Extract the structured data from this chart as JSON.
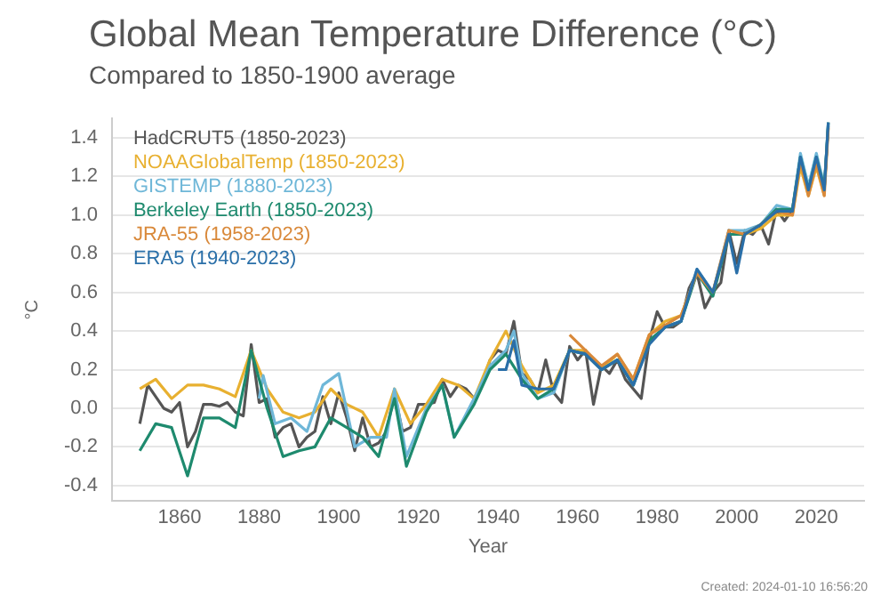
{
  "chart_data": {
    "type": "line",
    "title": "Global Mean Temperature Difference (°C)",
    "subtitle": "Compared to 1850-1900 average",
    "xlabel": "Year",
    "ylabel": "°C",
    "annotations": [
      "Created: 2024-01-10 16:56:20"
    ],
    "xlim": [
      1843,
      2032
    ],
    "xticks": [
      1860,
      1880,
      1900,
      1920,
      1940,
      1960,
      1980,
      2000,
      2020
    ],
    "ylim": [
      -0.48,
      1.5
    ],
    "yticks": [
      -0.4,
      -0.2,
      {
        "value": 0,
        "label": "0.0"
      },
      0.2,
      0.4,
      0.6,
      0.8,
      {
        "value": 1,
        "label": "1.0"
      },
      1.2,
      1.4
    ],
    "grid": "y",
    "legend": "top left",
    "marker": "none",
    "line_style": "solid",
    "series": [
      {
        "name": "HadCRUT5 (1850-2023)",
        "color": "#555555",
        "x": [
          1850,
          1852,
          1854,
          1856,
          1858,
          1860,
          1862,
          1864,
          1866,
          1868,
          1870,
          1872,
          1874,
          1876,
          1878,
          1880,
          1882,
          1884,
          1886,
          1888,
          1890,
          1892,
          1894,
          1896,
          1898,
          1900,
          1902,
          1904,
          1906,
          1908,
          1910,
          1912,
          1914,
          1916,
          1918,
          1920,
          1922,
          1924,
          1926,
          1928,
          1930,
          1932,
          1934,
          1936,
          1938,
          1940,
          1942,
          1944,
          1946,
          1948,
          1950,
          1952,
          1954,
          1956,
          1958,
          1960,
          1962,
          1964,
          1966,
          1968,
          1970,
          1972,
          1974,
          1976,
          1978,
          1980,
          1982,
          1984,
          1986,
          1988,
          1990,
          1992,
          1994,
          1996,
          1998,
          2000,
          2002,
          2004,
          2006,
          2008,
          2010,
          2012,
          2014,
          2016,
          2018,
          2020,
          2022,
          2023
        ],
        "values": [
          -0.08,
          0.12,
          0.06,
          0.0,
          -0.02,
          0.03,
          -0.2,
          -0.12,
          0.02,
          0.02,
          0.01,
          0.03,
          -0.02,
          -0.04,
          0.33,
          0.03,
          0.05,
          -0.15,
          -0.1,
          -0.08,
          -0.2,
          -0.15,
          -0.12,
          0.06,
          -0.08,
          0.08,
          -0.05,
          -0.22,
          -0.05,
          -0.2,
          -0.18,
          -0.12,
          0.08,
          -0.12,
          -0.1,
          0.02,
          0.02,
          0.03,
          0.15,
          0.06,
          0.12,
          0.1,
          0.05,
          0.12,
          0.25,
          0.3,
          0.28,
          0.45,
          0.18,
          0.15,
          0.08,
          0.25,
          0.08,
          0.03,
          0.32,
          0.25,
          0.3,
          0.02,
          0.22,
          0.18,
          0.25,
          0.15,
          0.1,
          0.05,
          0.35,
          0.5,
          0.42,
          0.42,
          0.45,
          0.62,
          0.7,
          0.52,
          0.6,
          0.65,
          0.92,
          0.75,
          0.92,
          0.9,
          0.95,
          0.85,
          1.03,
          0.97,
          1.03,
          1.3,
          1.13,
          1.29,
          1.14,
          1.46
        ]
      },
      {
        "name": "NOAAGlobalTemp (1850-2023)",
        "color": "#e8b030",
        "x": [
          1850,
          1854,
          1858,
          1862,
          1866,
          1870,
          1874,
          1878,
          1882,
          1886,
          1890,
          1894,
          1898,
          1902,
          1906,
          1910,
          1914,
          1918,
          1922,
          1926,
          1930,
          1934,
          1938,
          1942,
          1946,
          1950,
          1954,
          1958,
          1962,
          1966,
          1970,
          1974,
          1978,
          1982,
          1986,
          1990,
          1994,
          1998,
          2002,
          2006,
          2010,
          2014,
          2016,
          2018,
          2020,
          2022
        ],
        "values": [
          0.1,
          0.15,
          0.05,
          0.12,
          0.12,
          0.1,
          0.06,
          0.3,
          0.1,
          -0.02,
          -0.05,
          -0.02,
          0.1,
          0.02,
          -0.02,
          -0.15,
          0.1,
          -0.08,
          0.02,
          0.15,
          0.12,
          0.05,
          0.25,
          0.4,
          0.22,
          0.08,
          0.12,
          0.3,
          0.3,
          0.2,
          0.28,
          0.15,
          0.38,
          0.45,
          0.48,
          0.7,
          0.6,
          0.9,
          0.9,
          0.93,
          1.0,
          1.0,
          1.25,
          1.1,
          1.25,
          1.1
        ]
      },
      {
        "name": "GISTEMP (1880-2023)",
        "color": "#6fb7d8",
        "x": [
          1880,
          1881,
          1884,
          1888,
          1892,
          1896,
          1900,
          1904,
          1908,
          1912,
          1914,
          1917,
          1922,
          1926,
          1929,
          1934,
          1938,
          1942,
          1944,
          1946,
          1950,
          1954,
          1958,
          1962,
          1966,
          1970,
          1974,
          1978,
          1982,
          1986,
          1990,
          1994,
          1998,
          2002,
          2006,
          2010,
          2014,
          2016,
          2018,
          2020,
          2022,
          2023
        ],
        "values": [
          0.05,
          0.17,
          -0.08,
          -0.05,
          -0.12,
          0.12,
          0.18,
          -0.2,
          -0.15,
          -0.15,
          0.1,
          -0.25,
          0.0,
          0.12,
          -0.15,
          0.05,
          0.22,
          0.3,
          0.4,
          0.18,
          0.05,
          0.08,
          0.3,
          0.28,
          0.2,
          0.25,
          0.12,
          0.35,
          0.42,
          0.45,
          0.72,
          0.6,
          0.92,
          0.92,
          0.95,
          1.05,
          1.03,
          1.32,
          1.15,
          1.32,
          1.15,
          1.47
        ]
      },
      {
        "name": "Berkeley Earth (1850-2023)",
        "color": "#1e8a6e",
        "x": [
          1850,
          1854,
          1858,
          1862,
          1866,
          1870,
          1874,
          1878,
          1882,
          1886,
          1890,
          1894,
          1898,
          1902,
          1906,
          1910,
          1914,
          1917,
          1922,
          1926,
          1929,
          1934,
          1938,
          1942,
          1946,
          1950,
          1954,
          1958,
          1962,
          1966,
          1970,
          1974,
          1978,
          1982,
          1986,
          1990,
          1994,
          1998,
          2002,
          2006,
          2010,
          2014,
          2016,
          2018,
          2020,
          2022,
          2023
        ],
        "values": [
          -0.22,
          -0.08,
          -0.1,
          -0.35,
          -0.05,
          -0.05,
          -0.1,
          0.3,
          0.0,
          -0.25,
          -0.22,
          -0.2,
          -0.05,
          -0.1,
          -0.15,
          -0.25,
          0.05,
          -0.3,
          -0.02,
          0.12,
          -0.15,
          0.02,
          0.2,
          0.28,
          0.15,
          0.05,
          0.1,
          0.3,
          0.28,
          0.2,
          0.25,
          0.12,
          0.35,
          0.42,
          0.45,
          0.7,
          0.58,
          0.9,
          0.9,
          0.95,
          1.03,
          1.03,
          1.3,
          1.13,
          1.3,
          1.14,
          1.48
        ]
      },
      {
        "name": "JRA-55 (1958-2023)",
        "color": "#d9893a",
        "x": [
          1958,
          1962,
          1966,
          1970,
          1974,
          1978,
          1982,
          1986,
          1990,
          1994,
          1998,
          2002,
          2006,
          2010,
          2014,
          2016,
          2018,
          2020,
          2022,
          2023
        ],
        "values": [
          0.38,
          0.3,
          0.22,
          0.28,
          0.15,
          0.38,
          0.43,
          0.48,
          0.7,
          0.6,
          0.92,
          0.9,
          0.95,
          1.02,
          1.0,
          1.28,
          1.1,
          1.27,
          1.1,
          1.45
        ]
      },
      {
        "name": "ERA5 (1940-2023)",
        "color": "#2a6fa8",
        "x": [
          1940,
          1942,
          1944,
          1946,
          1950,
          1954,
          1958,
          1962,
          1966,
          1970,
          1974,
          1978,
          1982,
          1986,
          1990,
          1994,
          1998,
          2000,
          2002,
          2006,
          2010,
          2014,
          2016,
          2018,
          2020,
          2022,
          2023
        ],
        "values": [
          0.2,
          0.2,
          0.35,
          0.12,
          0.1,
          0.1,
          0.3,
          0.28,
          0.2,
          0.25,
          0.12,
          0.33,
          0.42,
          0.45,
          0.72,
          0.6,
          0.9,
          0.7,
          0.9,
          0.95,
          1.02,
          1.02,
          1.3,
          1.13,
          1.3,
          1.13,
          1.48
        ]
      }
    ]
  }
}
